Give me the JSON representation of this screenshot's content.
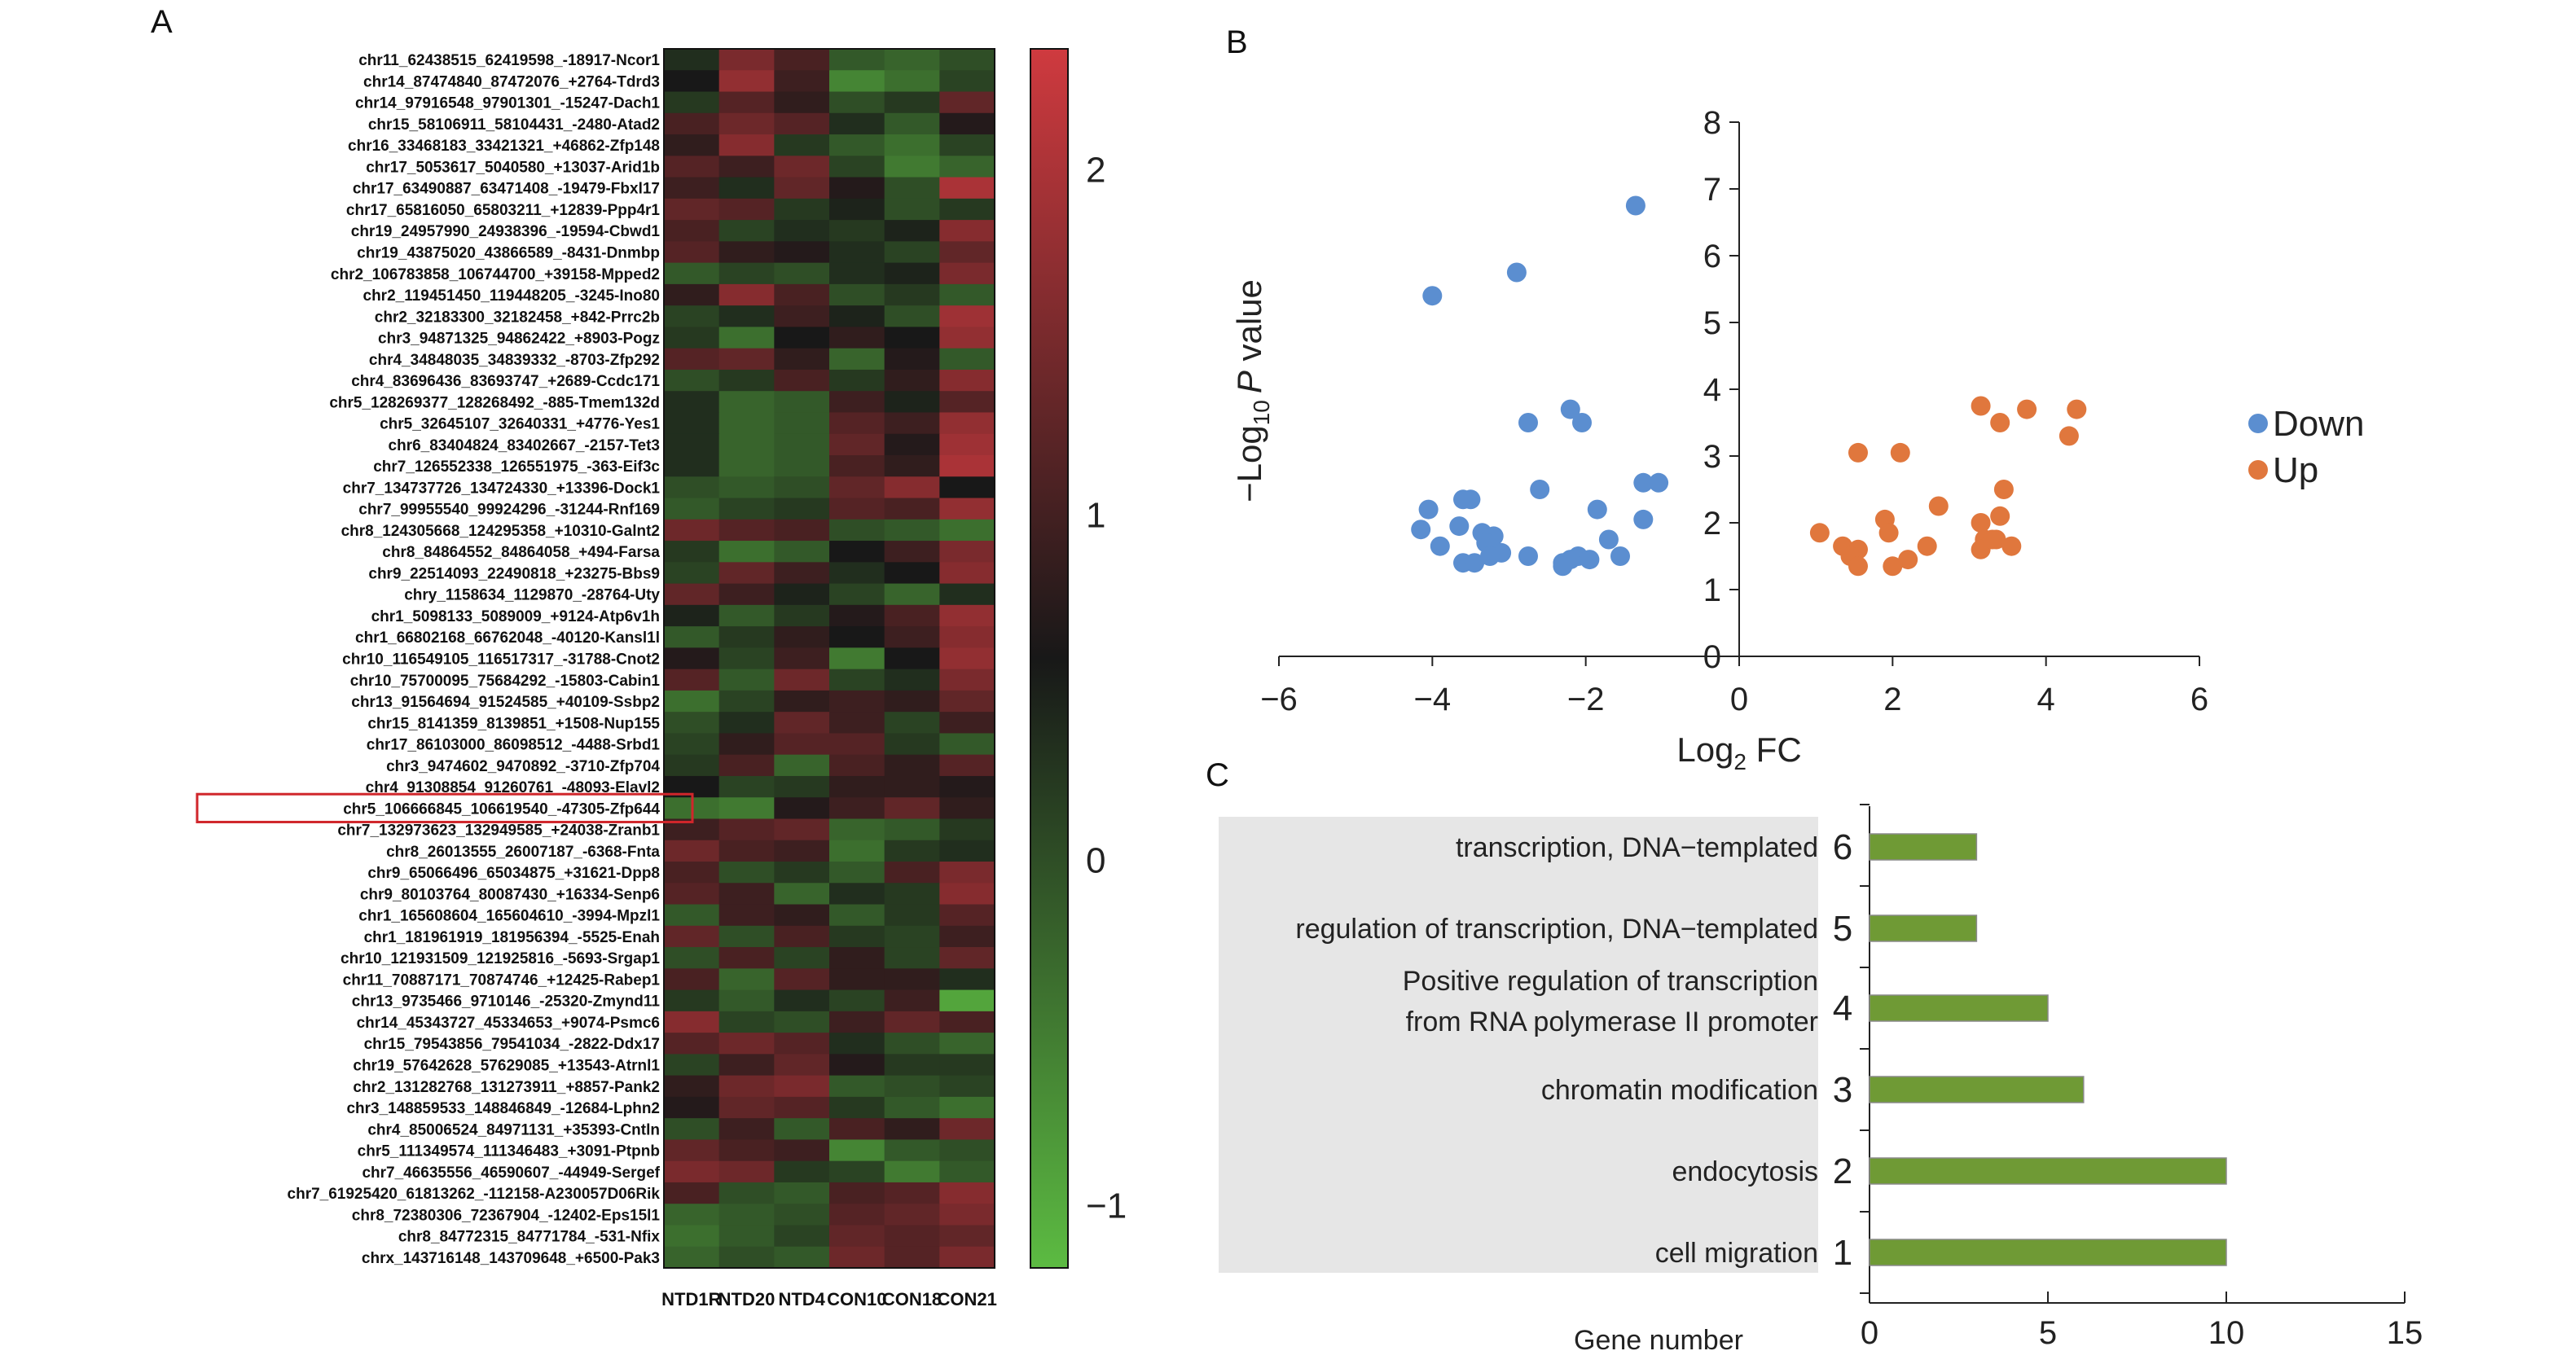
{
  "panels": {
    "a": "A",
    "b": "B",
    "c": "C"
  },
  "chart_data": [
    {
      "type": "heatmap",
      "columns": [
        "NTD1R",
        "NTD20",
        "NTD4",
        "CON10",
        "CON18",
        "CON21"
      ],
      "rows": [
        "chr11_62438515_62419598_-18917-Ncor1",
        "chr14_87474840_87472076_+2764-Tdrd3",
        "chr14_97916548_97901301_-15247-Dach1",
        "chr15_58106911_58104431_-2480-Atad2",
        "chr16_33468183_33421321_+46862-Zfp148",
        "chr17_5053617_5040580_+13037-Arid1b",
        "chr17_63490887_63471408_-19479-Fbxl17",
        "chr17_65816050_65803211_+12839-Ppp4r1",
        "chr19_24957990_24938396_-19594-Cbwd1",
        "chr19_43875020_43866589_-8431-Dnmbp",
        "chr2_106783858_106744700_+39158-Mpped2",
        "chr2_119451450_119448205_-3245-Ino80",
        "chr2_32183300_32182458_+842-Prrc2b",
        "chr3_94871325_94862422_+8903-Pogz",
        "chr4_34848035_34839332_-8703-Zfp292",
        "chr4_83696436_83693747_+2689-Ccdc171",
        "chr5_128269377_128268492_-885-Tmem132d",
        "chr5_32645107_32640331_+4776-Yes1",
        "chr6_83404824_83402667_-2157-Tet3",
        "chr7_126552338_126551975_-363-Eif3c",
        "chr7_134737726_134724330_+13396-Dock1",
        "chr7_99955540_99924296_-31244-Rnf169",
        "chr8_124305668_124295358_+10310-Galnt2",
        "chr8_84864552_84864058_+494-Farsa",
        "chr9_22514093_22490818_+23275-Bbs9",
        "chry_1158634_1129870_-28764-Uty",
        "chr1_5098133_5089009_+9124-Atp6v1h",
        "chr1_66802168_66762048_-40120-Kansl1l",
        "chr10_116549105_116517317_-31788-Cnot2",
        "chr10_75700095_75684292_-15803-Cabin1",
        "chr13_91564694_91524585_+40109-Ssbp2",
        "chr15_8141359_8139851_+1508-Nup155",
        "chr17_86103000_86098512_-4488-Srbd1",
        "chr3_9474602_9470892_-3710-Zfp704",
        "chr4_91308854_91260761_-48093-Elavl2",
        "chr5_106666845_106619540_-47305-Zfp644",
        "chr7_132973623_132949585_+24038-Zranb1",
        "chr8_26013555_26007187_-6368-Fnta",
        "chr9_65066496_65034875_+31621-Dpp8",
        "chr9_80103764_80087430_+16334-Senp6",
        "chr1_165608604_165604610_-3994-Mpzl1",
        "chr1_181961919_181956394_-5525-Enah",
        "chr10_121931509_121925816_-5693-Srgap1",
        "chr11_70887171_70874746_+12425-Rabep1",
        "chr13_9735466_9710146_-25320-Zmynd11",
        "chr14_45343727_45334653_+9074-Psmc6",
        "chr15_79543856_79541034_-2822-Ddx17",
        "chr19_57642628_57629085_+13543-Atrnl1",
        "chr2_131282768_131273911_+8857-Pank2",
        "chr3_148859533_148846849_-12684-Lphn2",
        "chr4_85006524_84971131_+35393-Cntln",
        "chr5_111349574_111346483_+3091-Ptpnb",
        "chr7_46635556_46590607_-44949-Sergef",
        "chr7_61925420_61813262_-112158-A230057D06Rik",
        "chr8_72380306_72367904_-12402-Eps15l1",
        "chr8_84772315_84771784_-531-Nfix",
        "chrx_143716148_143709648_+6500-Pak3"
      ],
      "highlighted_row": "chr5_106666845_106619540_-47305-Zfp644",
      "colorbar": {
        "ticks": [
          2,
          1,
          0,
          -1
        ],
        "tick_labels": [
          "2",
          "1",
          "0",
          "−1"
        ],
        "colors": {
          "high": "#cf3a3f",
          "mid": "#181818",
          "low": "#5cbb42"
        }
      },
      "values": [
        [
          -0.2,
          0.8,
          0.4,
          -0.6,
          -0.7,
          -0.5
        ],
        [
          0.0,
          1.0,
          0.3,
          -1.0,
          -0.8,
          -0.4
        ],
        [
          -0.3,
          0.5,
          0.2,
          -0.5,
          -0.3,
          0.6
        ],
        [
          0.4,
          0.7,
          0.5,
          -0.2,
          -0.6,
          0.1
        ],
        [
          0.2,
          0.9,
          -0.3,
          -0.6,
          -0.8,
          -0.4
        ],
        [
          0.5,
          0.3,
          0.7,
          -0.4,
          -0.9,
          -0.7
        ],
        [
          0.3,
          -0.2,
          0.6,
          0.1,
          -0.5,
          1.2
        ],
        [
          0.6,
          0.5,
          -0.3,
          -0.1,
          -0.5,
          -0.3
        ],
        [
          0.4,
          -0.4,
          -0.2,
          -0.3,
          -0.1,
          0.9
        ],
        [
          0.5,
          0.2,
          0.1,
          -0.2,
          -0.4,
          0.6
        ],
        [
          -0.6,
          -0.4,
          -0.5,
          -0.2,
          -0.1,
          0.8
        ],
        [
          0.2,
          0.9,
          0.4,
          -0.5,
          -0.3,
          -0.6
        ],
        [
          -0.4,
          -0.2,
          0.3,
          -0.1,
          -0.5,
          1.1
        ],
        [
          -0.3,
          -0.8,
          0.0,
          0.2,
          0.0,
          1.0
        ],
        [
          0.5,
          0.6,
          0.2,
          -0.7,
          0.1,
          -0.6
        ],
        [
          -0.5,
          -0.3,
          0.4,
          -0.3,
          0.2,
          0.9
        ],
        [
          -0.2,
          -0.7,
          -0.6,
          0.3,
          -0.1,
          0.5
        ],
        [
          -0.2,
          -0.7,
          -0.6,
          0.5,
          0.3,
          1.0
        ],
        [
          -0.2,
          -0.7,
          -0.6,
          0.6,
          0.1,
          1.1
        ],
        [
          -0.2,
          -0.7,
          -0.6,
          0.4,
          0.2,
          1.2
        ],
        [
          -0.5,
          -0.6,
          -0.5,
          0.6,
          0.9,
          0.0
        ],
        [
          -0.6,
          -0.4,
          -0.3,
          0.5,
          0.4,
          1.0
        ],
        [
          0.7,
          0.5,
          0.4,
          -0.5,
          -0.6,
          -0.8
        ],
        [
          -0.3,
          -0.8,
          -0.6,
          0.0,
          0.3,
          0.8
        ],
        [
          -0.4,
          0.6,
          0.3,
          -0.2,
          0.0,
          0.9
        ],
        [
          0.6,
          0.3,
          -0.1,
          -0.4,
          -0.7,
          -0.2
        ],
        [
          -0.1,
          -0.6,
          -0.3,
          0.1,
          0.4,
          1.0
        ],
        [
          -0.6,
          -0.3,
          0.2,
          0.0,
          0.3,
          0.9
        ],
        [
          0.1,
          -0.4,
          0.3,
          -0.9,
          0.0,
          1.0
        ],
        [
          0.5,
          -0.6,
          0.7,
          -0.4,
          -0.2,
          0.8
        ],
        [
          -0.8,
          -0.4,
          0.2,
          0.3,
          0.2,
          0.6
        ],
        [
          -0.5,
          -0.2,
          0.6,
          0.3,
          -0.4,
          0.3
        ],
        [
          -0.4,
          0.2,
          0.5,
          0.5,
          -0.3,
          -0.6
        ],
        [
          -0.3,
          0.4,
          -0.7,
          0.4,
          0.2,
          0.5
        ],
        [
          0.0,
          -0.4,
          -0.3,
          0.2,
          0.2,
          0.1
        ],
        [
          -0.8,
          -0.9,
          0.1,
          0.3,
          0.6,
          0.2
        ],
        [
          0.3,
          0.5,
          0.6,
          -0.7,
          -0.6,
          -0.3
        ],
        [
          0.7,
          0.4,
          0.3,
          -0.8,
          -0.3,
          -0.2
        ],
        [
          0.4,
          -0.5,
          -0.3,
          -0.6,
          0.4,
          0.8
        ],
        [
          0.5,
          0.3,
          -0.7,
          -0.2,
          -0.3,
          0.9
        ],
        [
          -0.6,
          0.3,
          0.2,
          -0.6,
          -0.3,
          0.5
        ],
        [
          0.6,
          -0.5,
          0.4,
          -0.3,
          -0.4,
          0.3
        ],
        [
          -0.5,
          0.4,
          -0.4,
          0.2,
          -0.4,
          0.6
        ],
        [
          0.4,
          -0.7,
          0.5,
          0.2,
          0.2,
          -0.2
        ],
        [
          -0.3,
          -0.6,
          -0.2,
          -0.4,
          0.3,
          -1.3
        ],
        [
          0.9,
          -0.4,
          -0.5,
          0.3,
          0.6,
          0.4
        ],
        [
          0.5,
          0.7,
          0.5,
          -0.2,
          -0.5,
          -0.7
        ],
        [
          -0.4,
          0.3,
          0.6,
          0.1,
          -0.3,
          -0.3
        ],
        [
          0.2,
          0.7,
          0.8,
          -0.6,
          -0.5,
          -0.4
        ],
        [
          0.1,
          0.6,
          0.5,
          -0.3,
          -0.6,
          -0.8
        ],
        [
          -0.5,
          0.3,
          -0.6,
          0.4,
          0.2,
          0.7
        ],
        [
          0.6,
          0.4,
          0.3,
          -1.0,
          -0.6,
          -0.5
        ],
        [
          0.8,
          0.7,
          -0.3,
          -0.4,
          -0.9,
          -0.6
        ],
        [
          0.4,
          -0.5,
          -0.6,
          0.4,
          0.5,
          0.9
        ],
        [
          -0.7,
          -0.6,
          -0.5,
          0.5,
          0.6,
          0.8
        ],
        [
          -0.8,
          -0.6,
          -0.4,
          0.6,
          0.5,
          0.6
        ],
        [
          -0.7,
          -0.5,
          -0.6,
          0.7,
          0.5,
          0.8
        ]
      ]
    },
    {
      "type": "scatter",
      "xlabel": "Log",
      "xlabel_sub": "2",
      "xlabel_after": " FC",
      "ylabel_pre": "−Log",
      "ylabel_sub": "10",
      "ylabel_italic": "P",
      "ylabel_post": " value",
      "xlim": [
        -6,
        6
      ],
      "ylim": [
        0,
        8
      ],
      "xticks": [
        -6,
        -4,
        -2,
        0,
        2,
        4,
        6
      ],
      "xtick_labels": [
        "−6",
        "−4",
        "−2",
        "0",
        "2",
        "4",
        "6"
      ],
      "yticks": [
        0,
        1,
        2,
        3,
        4,
        5,
        6,
        7,
        8
      ],
      "legend_position": "right",
      "series": [
        {
          "name": "Down",
          "color": "#5b8ed0",
          "points": [
            [
              -1.35,
              6.75
            ],
            [
              -4.0,
              5.4
            ],
            [
              -2.9,
              5.75
            ],
            [
              -2.2,
              3.7
            ],
            [
              -2.05,
              3.5
            ],
            [
              -2.75,
              3.5
            ],
            [
              -1.25,
              2.6
            ],
            [
              -1.05,
              2.6
            ],
            [
              -2.6,
              2.5
            ],
            [
              -1.85,
              2.2
            ],
            [
              -4.05,
              2.2
            ],
            [
              -3.5,
              2.35
            ],
            [
              -3.6,
              2.35
            ],
            [
              -1.25,
              2.05
            ],
            [
              -3.65,
              1.95
            ],
            [
              -4.15,
              1.9
            ],
            [
              -3.35,
              1.85
            ],
            [
              -3.2,
              1.8
            ],
            [
              -3.3,
              1.7
            ],
            [
              -3.9,
              1.65
            ],
            [
              -3.1,
              1.55
            ],
            [
              -3.25,
              1.5
            ],
            [
              -2.75,
              1.5
            ],
            [
              -2.1,
              1.5
            ],
            [
              -1.7,
              1.75
            ],
            [
              -3.6,
              1.4
            ],
            [
              -3.45,
              1.4
            ],
            [
              -2.3,
              1.4
            ],
            [
              -2.2,
              1.45
            ],
            [
              -1.95,
              1.45
            ],
            [
              -1.55,
              1.5
            ],
            [
              -2.3,
              1.35
            ]
          ]
        },
        {
          "name": "Up",
          "color": "#e0773d",
          "points": [
            [
              4.4,
              3.7
            ],
            [
              3.75,
              3.7
            ],
            [
              3.15,
              3.75
            ],
            [
              3.4,
              3.5
            ],
            [
              4.3,
              3.3
            ],
            [
              1.55,
              3.05
            ],
            [
              2.1,
              3.05
            ],
            [
              3.45,
              2.5
            ],
            [
              2.6,
              2.25
            ],
            [
              3.4,
              2.1
            ],
            [
              3.15,
              2.0
            ],
            [
              1.9,
              2.05
            ],
            [
              1.05,
              1.85
            ],
            [
              1.95,
              1.85
            ],
            [
              3.2,
              1.75
            ],
            [
              3.35,
              1.75
            ],
            [
              1.35,
              1.65
            ],
            [
              1.55,
              1.6
            ],
            [
              2.45,
              1.65
            ],
            [
              3.15,
              1.6
            ],
            [
              3.55,
              1.65
            ],
            [
              1.45,
              1.5
            ],
            [
              2.2,
              1.45
            ],
            [
              2.0,
              1.35
            ],
            [
              1.55,
              1.35
            ],
            [
              3.3,
              1.75
            ]
          ]
        }
      ]
    },
    {
      "type": "bar",
      "orientation": "horizontal",
      "categories": [
        "cell migration",
        "endocytosis",
        "chromatin modification",
        "Positive regulation of transcription from RNA polymerase II promoter",
        "regulation of transcription, DNA−templated",
        "transcription, DNA−templated"
      ],
      "category_lines": [
        [
          "cell migration"
        ],
        [
          "endocytosis"
        ],
        [
          "chromatin modification"
        ],
        [
          "Positive regulation of transcription",
          "from RNA polymerase II promoter"
        ],
        [
          "regulation of transcription, DNA−templated"
        ],
        [
          "transcription, DNA−templated"
        ]
      ],
      "rank_labels": [
        "1",
        "2",
        "3",
        "4",
        "5",
        "6"
      ],
      "values": [
        10,
        10,
        6,
        5,
        3,
        3
      ],
      "xlabel": "Gene number",
      "xlim": [
        0,
        15
      ],
      "xticks": [
        0,
        5,
        10,
        15
      ],
      "bar_color": "#6f9a35"
    }
  ]
}
